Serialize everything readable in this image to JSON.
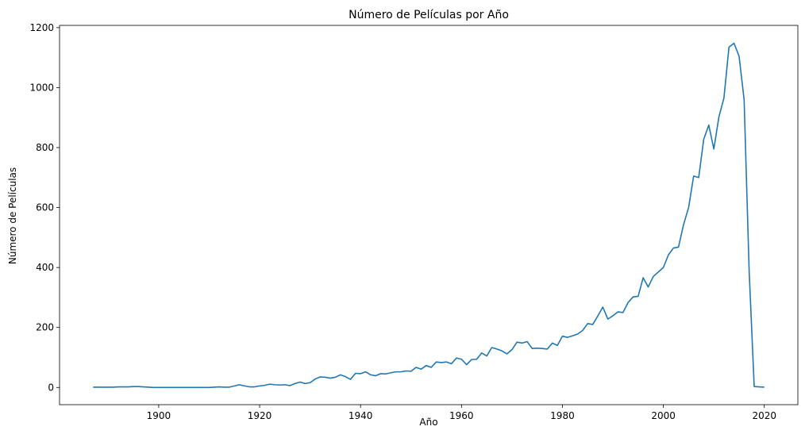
{
  "chart_data": {
    "type": "line",
    "title": "Número de Películas por Año",
    "x_label": "Año",
    "y_label": "Número de Películas",
    "color": "#1f77b4",
    "x": [
      1887,
      1888,
      1889,
      1890,
      1891,
      1892,
      1893,
      1894,
      1895,
      1896,
      1897,
      1898,
      1899,
      1900,
      1901,
      1902,
      1903,
      1904,
      1905,
      1906,
      1907,
      1908,
      1909,
      1910,
      1911,
      1912,
      1913,
      1914,
      1915,
      1916,
      1917,
      1918,
      1919,
      1920,
      1921,
      1922,
      1923,
      1924,
      1925,
      1926,
      1927,
      1928,
      1929,
      1930,
      1931,
      1932,
      1933,
      1934,
      1935,
      1936,
      1937,
      1938,
      1939,
      1940,
      1941,
      1942,
      1943,
      1944,
      1945,
      1946,
      1947,
      1948,
      1949,
      1950,
      1951,
      1952,
      1953,
      1954,
      1955,
      1956,
      1957,
      1958,
      1959,
      1960,
      1961,
      1962,
      1963,
      1964,
      1965,
      1966,
      1967,
      1968,
      1969,
      1970,
      1971,
      1972,
      1973,
      1974,
      1975,
      1976,
      1977,
      1978,
      1979,
      1980,
      1981,
      1982,
      1983,
      1984,
      1985,
      1986,
      1987,
      1988,
      1989,
      1990,
      1991,
      1992,
      1993,
      1994,
      1995,
      1996,
      1997,
      1998,
      1999,
      2000,
      2001,
      2002,
      2003,
      2004,
      2005,
      2006,
      2007,
      2008,
      2009,
      2010,
      2011,
      2012,
      2013,
      2014,
      2015,
      2016,
      2017,
      2018,
      2019,
      2020
    ],
    "values": [
      1,
      1,
      1,
      1,
      1,
      2,
      2,
      2,
      3,
      3,
      2,
      1,
      0,
      0,
      0,
      0,
      0,
      0,
      0,
      0,
      0,
      0,
      0,
      0,
      1,
      2,
      1,
      1,
      5,
      9,
      5,
      2,
      2,
      5,
      7,
      11,
      9,
      8,
      9,
      6,
      13,
      18,
      13,
      16,
      28,
      35,
      34,
      31,
      34,
      42,
      36,
      27,
      47,
      46,
      52,
      42,
      39,
      46,
      45,
      49,
      52,
      52,
      55,
      54,
      67,
      61,
      73,
      67,
      85,
      83,
      85,
      79,
      98,
      94,
      76,
      93,
      94,
      115,
      105,
      133,
      128,
      122,
      112,
      126,
      151,
      148,
      153,
      130,
      131,
      130,
      128,
      148,
      140,
      171,
      167,
      172,
      178,
      190,
      213,
      210,
      238,
      268,
      228,
      239,
      252,
      250,
      283,
      302,
      304,
      366,
      335,
      370,
      385,
      400,
      442,
      465,
      468,
      543,
      600,
      705,
      700,
      828,
      875,
      795,
      902,
      965,
      1135,
      1148,
      1105,
      960,
      388,
      3,
      2,
      1
    ],
    "xlim": [
      1880.35,
      2026.65
    ],
    "ylim": [
      -57.5,
      1207.5
    ],
    "xticks": [
      1900,
      1920,
      1940,
      1960,
      1980,
      2000,
      2020
    ],
    "yticks": [
      0,
      200,
      400,
      600,
      800,
      1000,
      1200
    ]
  }
}
